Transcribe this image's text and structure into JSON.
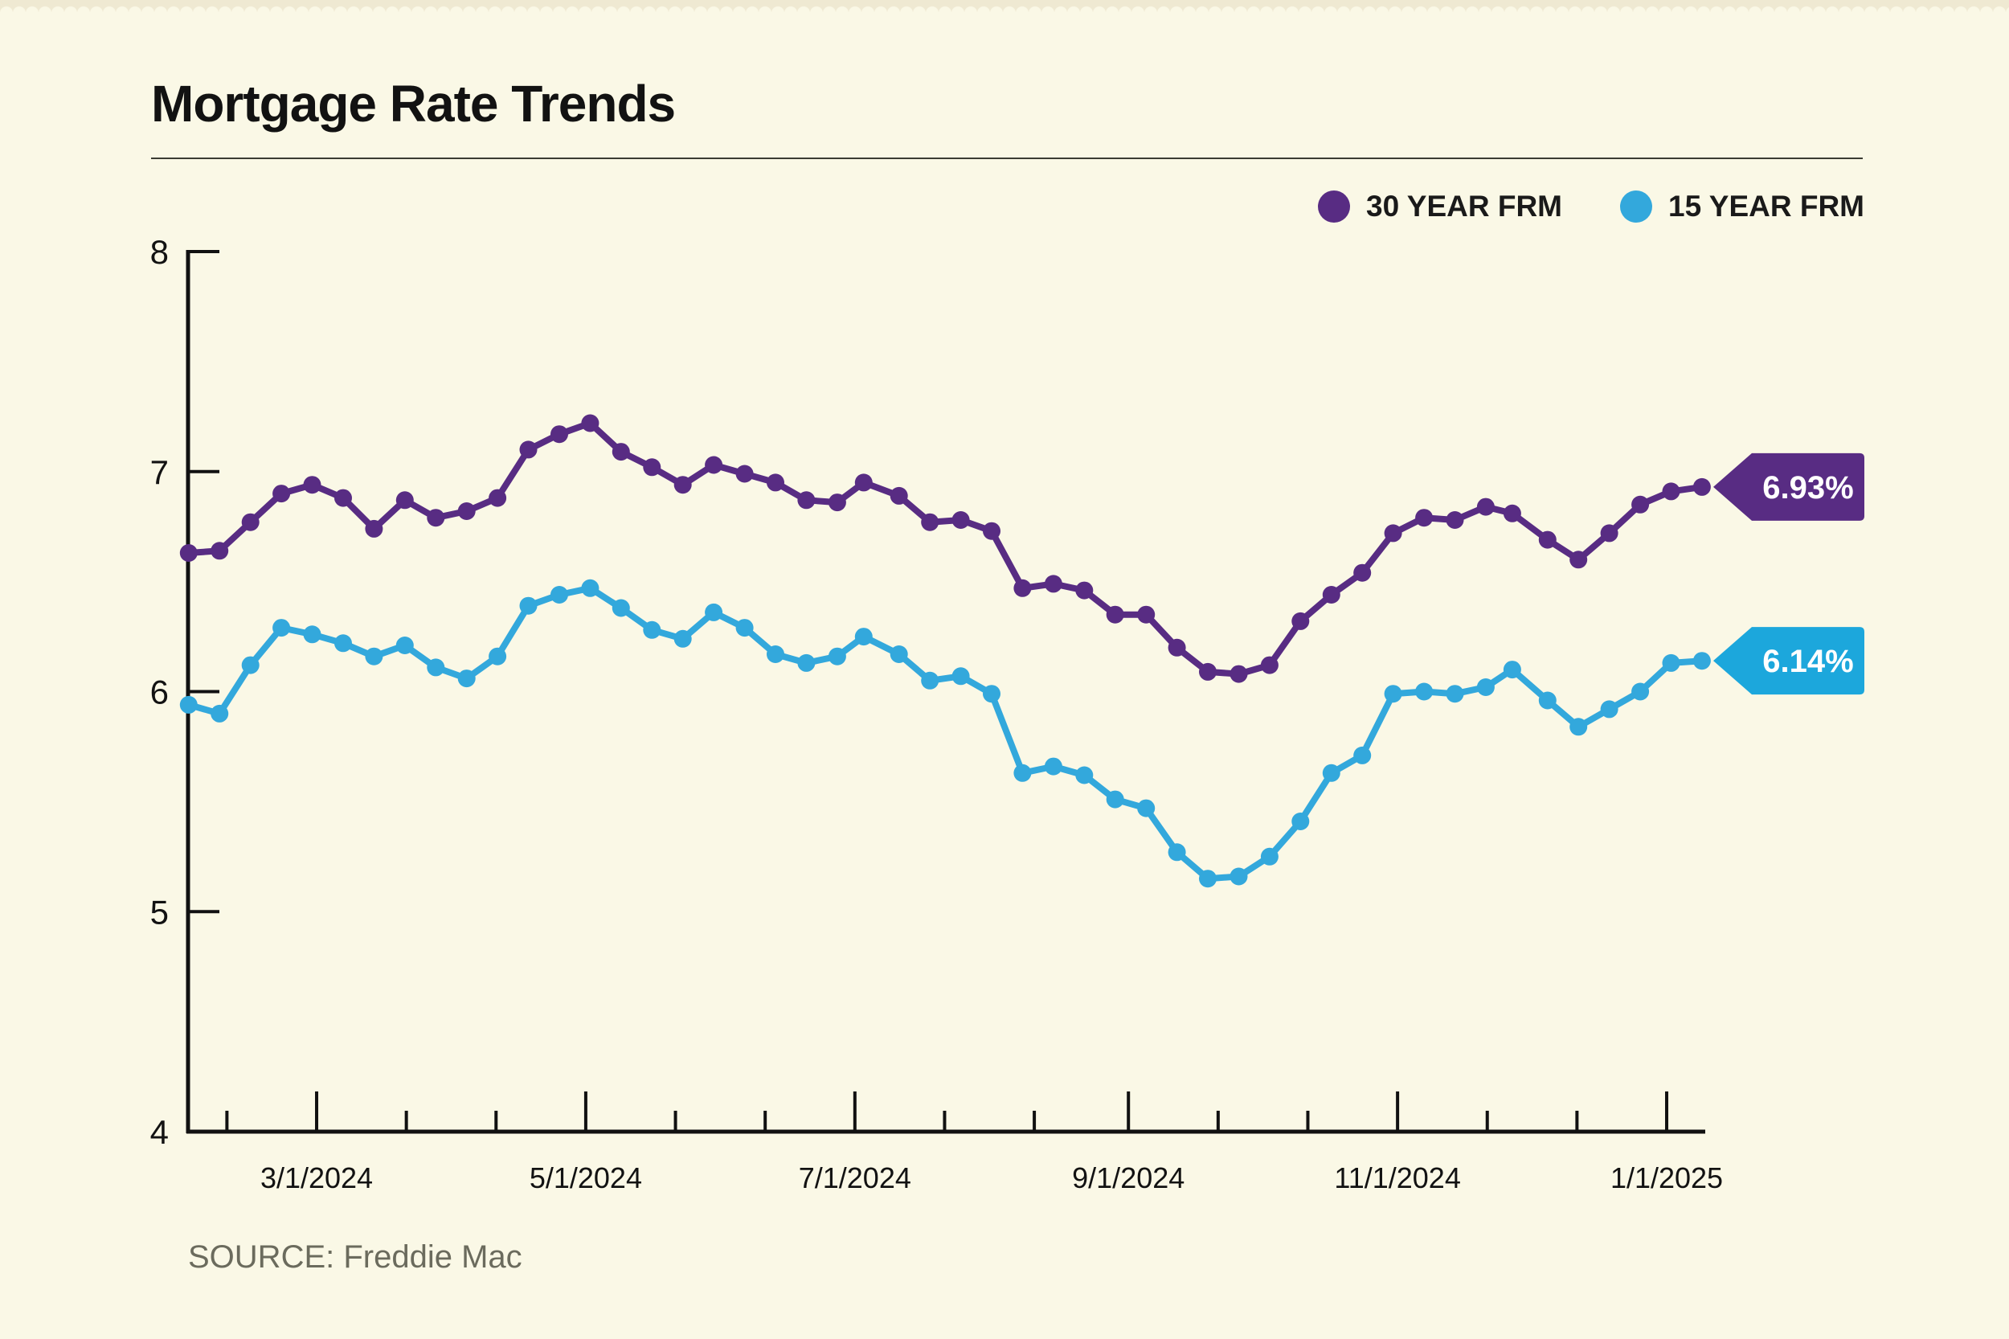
{
  "header": {
    "title": "Mortgage Rate Trends"
  },
  "legend": {
    "items": [
      {
        "label": "30 YEAR FRM",
        "color": "#582C83"
      },
      {
        "label": "15 YEAR FRM",
        "color": "#33A8DC"
      }
    ]
  },
  "source": {
    "text": "SOURCE: Freddie Mac"
  },
  "colors": {
    "background": "#FAF8E6",
    "axis": "#111111",
    "purple": "#582C83",
    "blue": "#33A8DC",
    "badge_blue": "#1CA7DC",
    "badge_text": "#FFFFFF"
  },
  "chart_data": {
    "type": "line",
    "title": "Mortgage Rate Trends",
    "xlabel": "",
    "ylabel": "",
    "ylim": [
      4,
      8
    ],
    "yticks": [
      4,
      5,
      6,
      7,
      8
    ],
    "xticks": [
      "3/1/2024",
      "5/1/2024",
      "7/1/2024",
      "9/1/2024",
      "11/1/2024",
      "1/1/2025"
    ],
    "grid": false,
    "legend_position": "top-right",
    "x": [
      "2/1/2024",
      "2/8/2024",
      "2/15/2024",
      "2/22/2024",
      "2/29/2024",
      "3/7/2024",
      "3/14/2024",
      "3/21/2024",
      "3/28/2024",
      "4/4/2024",
      "4/11/2024",
      "4/18/2024",
      "4/25/2024",
      "5/2/2024",
      "5/9/2024",
      "5/16/2024",
      "5/23/2024",
      "5/30/2024",
      "6/6/2024",
      "6/13/2024",
      "6/20/2024",
      "6/27/2024",
      "7/3/2024",
      "7/11/2024",
      "7/18/2024",
      "7/25/2024",
      "8/1/2024",
      "8/8/2024",
      "8/15/2024",
      "8/22/2024",
      "8/29/2024",
      "9/5/2024",
      "9/12/2024",
      "9/19/2024",
      "9/26/2024",
      "10/3/2024",
      "10/10/2024",
      "10/17/2024",
      "10/24/2024",
      "10/31/2024",
      "11/7/2024",
      "11/14/2024",
      "11/21/2024",
      "11/27/2024",
      "12/5/2024",
      "12/12/2024",
      "12/19/2024",
      "12/26/2024",
      "1/2/2025",
      "1/9/2025"
    ],
    "series": [
      {
        "name": "30 YEAR FRM",
        "color": "#582C83",
        "badge": {
          "label": "6.93%",
          "color": "#582C83"
        },
        "values": [
          6.63,
          6.64,
          6.77,
          6.9,
          6.94,
          6.88,
          6.74,
          6.87,
          6.79,
          6.82,
          6.88,
          7.1,
          7.17,
          7.22,
          7.09,
          7.02,
          6.94,
          7.03,
          6.99,
          6.95,
          6.87,
          6.86,
          6.95,
          6.89,
          6.77,
          6.78,
          6.73,
          6.47,
          6.49,
          6.46,
          6.35,
          6.35,
          6.2,
          6.09,
          6.08,
          6.12,
          6.32,
          6.44,
          6.54,
          6.72,
          6.79,
          6.78,
          6.84,
          6.81,
          6.69,
          6.6,
          6.72,
          6.85,
          6.91,
          6.93
        ]
      },
      {
        "name": "15 YEAR FRM",
        "color": "#33A8DC",
        "badge": {
          "label": "6.14%",
          "color": "#1CA7DC"
        },
        "values": [
          5.94,
          5.9,
          6.12,
          6.29,
          6.26,
          6.22,
          6.16,
          6.21,
          6.11,
          6.06,
          6.16,
          6.39,
          6.44,
          6.47,
          6.38,
          6.28,
          6.24,
          6.36,
          6.29,
          6.17,
          6.13,
          6.16,
          6.25,
          6.17,
          6.05,
          6.07,
          5.99,
          5.63,
          5.66,
          5.62,
          5.51,
          5.47,
          5.27,
          5.15,
          5.16,
          5.25,
          5.41,
          5.63,
          5.71,
          5.99,
          6.0,
          5.99,
          6.02,
          6.1,
          5.96,
          5.84,
          5.92,
          6.0,
          6.13,
          6.14
        ]
      }
    ]
  }
}
